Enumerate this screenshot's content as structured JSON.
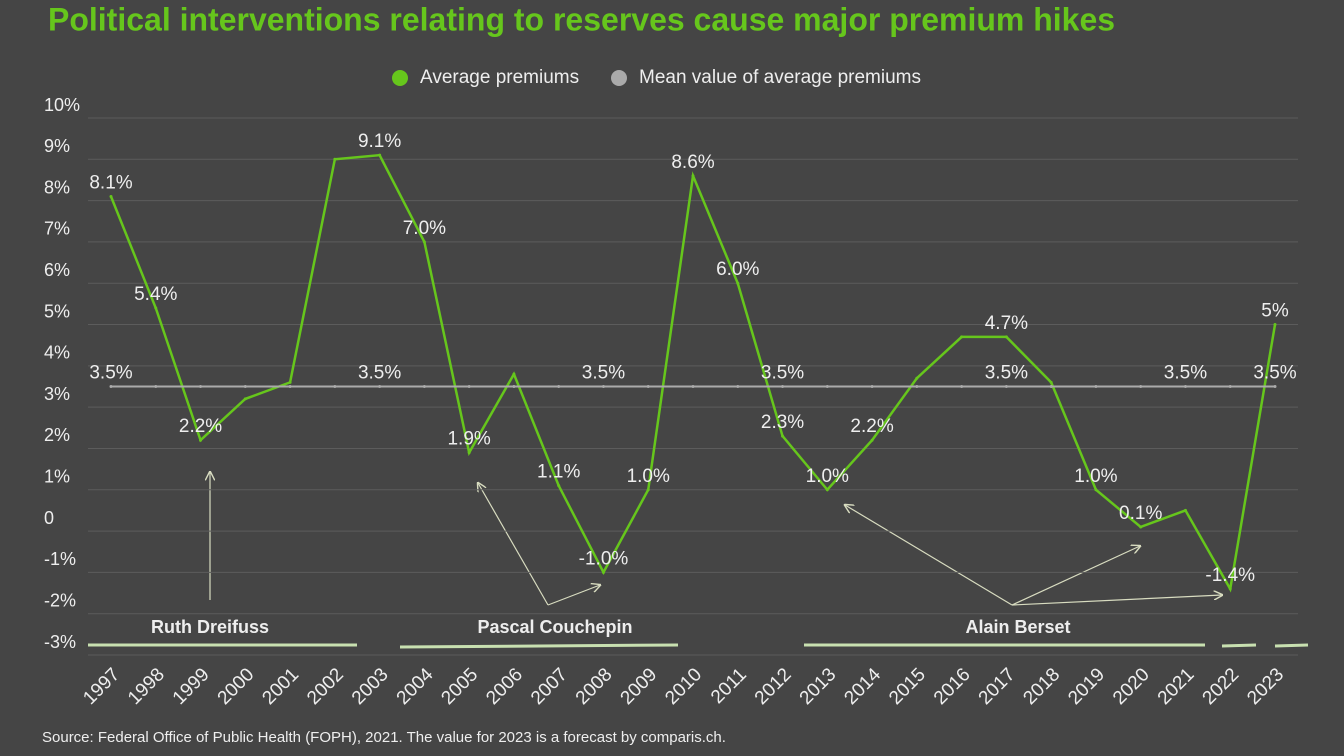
{
  "chart_data": {
    "type": "line",
    "title": "Political interventions relating to reserves cause major premium hikes",
    "source": "Source: Federal Office of Public Health (FOPH), 2021. The value for 2023 is a forecast by comparis.ch.",
    "categories": [
      "1997",
      "1998",
      "1999",
      "2000",
      "2001",
      "2002",
      "2003",
      "2004",
      "2005",
      "2006",
      "2007",
      "2008",
      "2009",
      "2010",
      "2011",
      "2012",
      "2013",
      "2014",
      "2015",
      "2016",
      "2017",
      "2018",
      "2019",
      "2020",
      "2021",
      "2022",
      "2023"
    ],
    "series": [
      {
        "name": "Average premiums",
        "color": "#66c61c",
        "values": [
          8.1,
          5.4,
          2.2,
          3.2,
          3.6,
          9.0,
          9.1,
          7.0,
          1.9,
          3.8,
          1.1,
          -1.0,
          1.0,
          8.6,
          6.0,
          2.3,
          1.0,
          2.2,
          3.7,
          4.7,
          4.7,
          3.6,
          1.0,
          0.1,
          0.5,
          -1.4,
          5
        ],
        "value_labels": [
          "8.1%",
          "5.4%",
          "2.2%",
          null,
          null,
          null,
          "9.1%",
          "7.0%",
          "1.9%",
          null,
          "1.1%",
          "-1.0%",
          "1.0%",
          "8.6%",
          "6.0%",
          "2.3%",
          "1.0%",
          "2.2%",
          null,
          null,
          "4.7%",
          null,
          "1.0%",
          "0.1%",
          null,
          "-1.4%",
          "5%"
        ]
      },
      {
        "name": "Mean value of average premiums",
        "color": "#aaaaaa",
        "values": [
          3.5,
          3.5,
          3.5,
          3.5,
          3.5,
          3.5,
          3.5,
          3.5,
          3.5,
          3.5,
          3.5,
          3.5,
          3.5,
          3.5,
          3.5,
          3.5,
          3.5,
          3.5,
          3.5,
          3.5,
          3.5,
          3.5,
          3.5,
          3.5,
          3.5,
          3.5,
          3.5
        ],
        "value_labels": [
          "3.5%",
          null,
          null,
          null,
          null,
          null,
          "3.5%",
          null,
          null,
          null,
          null,
          "3.5%",
          null,
          null,
          null,
          "3.5%",
          null,
          null,
          null,
          null,
          "3.5%",
          null,
          null,
          null,
          "3.5%",
          null,
          "3.5%"
        ]
      }
    ],
    "ylim": [
      -3,
      10
    ],
    "yticks": [
      {
        "value": 10,
        "label": "10%"
      },
      {
        "value": 9,
        "label": "9%"
      },
      {
        "value": 8,
        "label": "8%"
      },
      {
        "value": 7,
        "label": "7%"
      },
      {
        "value": 6,
        "label": "6%"
      },
      {
        "value": 5,
        "label": "5%"
      },
      {
        "value": 4,
        "label": "4%"
      },
      {
        "value": 3,
        "label": "3%"
      },
      {
        "value": 2,
        "label": "2%"
      },
      {
        "value": 1,
        "label": "1%"
      },
      0,
      {
        "value": -1,
        "label": "-1%"
      },
      {
        "value": -2,
        "label": "-2%"
      },
      {
        "value": -3,
        "label": "-3%"
      }
    ],
    "grid": true,
    "legend": "top",
    "annotations": [
      {
        "text": "Ruth Dreifuss"
      },
      {
        "text": "Pascal Couchepin"
      },
      {
        "text": "Alain Berset"
      }
    ]
  }
}
